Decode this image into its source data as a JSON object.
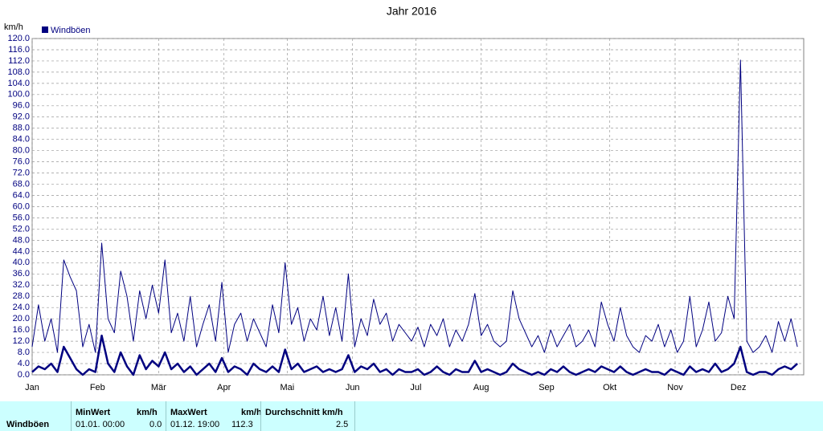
{
  "chart_data": {
    "type": "line",
    "title": "Jahr 2016",
    "y_label": "km/h",
    "color": "#000080",
    "grid": true,
    "legend": "top-left",
    "x": [
      0,
      3,
      6,
      9,
      12,
      15,
      18,
      21,
      24,
      27,
      30,
      33,
      36,
      39,
      42,
      45,
      48,
      51,
      54,
      57,
      60,
      63,
      66,
      69,
      72,
      75,
      78,
      81,
      84,
      87,
      90,
      93,
      96,
      99,
      102,
      105,
      108,
      111,
      114,
      117,
      120,
      123,
      126,
      129,
      132,
      135,
      138,
      141,
      144,
      147,
      150,
      153,
      156,
      159,
      162,
      165,
      168,
      171,
      174,
      177,
      180,
      183,
      186,
      189,
      192,
      195,
      198,
      201,
      204,
      207,
      210,
      213,
      216,
      219,
      222,
      225,
      228,
      231,
      234,
      237,
      240,
      243,
      246,
      249,
      252,
      255,
      258,
      261,
      264,
      267,
      270,
      273,
      276,
      279,
      282,
      285,
      288,
      291,
      294,
      297,
      300,
      303,
      306,
      309,
      312,
      315,
      318,
      321,
      324,
      327,
      330,
      333,
      336,
      339,
      342,
      345,
      348,
      351,
      354,
      357,
      360,
      363
    ],
    "series": [
      {
        "name": "Windböen",
        "color": "#000080",
        "width": 1,
        "values": [
          10,
          25,
          12,
          20,
          8,
          41,
          35,
          30,
          10,
          18,
          8,
          47,
          20,
          15,
          37,
          28,
          12,
          30,
          20,
          32,
          22,
          41,
          15,
          22,
          12,
          28,
          10,
          18,
          25,
          12,
          33,
          8,
          18,
          22,
          12,
          20,
          15,
          10,
          25,
          15,
          40,
          18,
          24,
          12,
          20,
          16,
          28,
          14,
          24,
          12,
          36,
          10,
          20,
          14,
          27,
          18,
          22,
          12,
          18,
          15,
          12,
          17,
          10,
          18,
          14,
          20,
          10,
          16,
          12,
          18,
          29,
          14,
          18,
          12,
          10,
          12,
          30,
          20,
          15,
          10,
          14,
          8,
          16,
          10,
          14,
          18,
          10,
          12,
          16,
          10,
          26,
          18,
          12,
          24,
          14,
          10,
          8,
          14,
          12,
          18,
          10,
          16,
          8,
          12,
          28,
          10,
          16,
          26,
          12,
          15,
          28,
          20,
          112.3,
          12,
          8,
          10,
          14,
          8,
          19,
          12,
          20,
          10
        ]
      },
      {
        "color": "#000080",
        "width": 2.5,
        "values": [
          1,
          3,
          2,
          4,
          1,
          10,
          6,
          2,
          0,
          2,
          1,
          14,
          4,
          1,
          8,
          3,
          0,
          7,
          2,
          5,
          3,
          8,
          2,
          4,
          1,
          3,
          0,
          2,
          4,
          1,
          6,
          1,
          3,
          2,
          0,
          4,
          2,
          1,
          3,
          1,
          9,
          2,
          4,
          1,
          2,
          3,
          1,
          2,
          1,
          2,
          7,
          1,
          3,
          2,
          4,
          1,
          2,
          0,
          2,
          1,
          1,
          2,
          0,
          1,
          3,
          1,
          0,
          2,
          1,
          1,
          5,
          1,
          2,
          1,
          0,
          1,
          4,
          2,
          1,
          0,
          1,
          0,
          2,
          1,
          3,
          1,
          0,
          1,
          2,
          1,
          3,
          2,
          1,
          3,
          1,
          0,
          1,
          2,
          1,
          1,
          0,
          2,
          1,
          0,
          3,
          1,
          2,
          1,
          4,
          1,
          2,
          4,
          10,
          1,
          0,
          1,
          1,
          0,
          2,
          3,
          2,
          4
        ]
      }
    ],
    "xlim": [
      0,
      366
    ],
    "xticks": [
      {
        "value": 0,
        "label": "Jan"
      },
      {
        "value": 31,
        "label": "Feb"
      },
      {
        "value": 60,
        "label": "Mär"
      },
      {
        "value": 91,
        "label": "Apr"
      },
      {
        "value": 121,
        "label": "Mai"
      },
      {
        "value": 152,
        "label": "Jun"
      },
      {
        "value": 182,
        "label": "Jul"
      },
      {
        "value": 213,
        "label": "Aug"
      },
      {
        "value": 244,
        "label": "Sep"
      },
      {
        "value": 274,
        "label": "Okt"
      },
      {
        "value": 305,
        "label": "Nov"
      },
      {
        "value": 335,
        "label": "Dez"
      }
    ],
    "ylim": [
      0,
      120
    ],
    "yticks": [
      {
        "value": 0,
        "label": "0.0"
      },
      {
        "value": 4,
        "label": "4.0"
      },
      {
        "value": 8,
        "label": "8.0"
      },
      {
        "value": 12,
        "label": "12.0"
      },
      {
        "value": 16,
        "label": "16.0"
      },
      {
        "value": 20,
        "label": "20.0"
      },
      {
        "value": 24,
        "label": "24.0"
      },
      {
        "value": 28,
        "label": "28.0"
      },
      {
        "value": 32,
        "label": "32.0"
      },
      {
        "value": 36,
        "label": "36.0"
      },
      {
        "value": 40,
        "label": "40.0"
      },
      {
        "value": 44,
        "label": "44.0"
      },
      {
        "value": 48,
        "label": "48.0"
      },
      {
        "value": 52,
        "label": "52.0"
      },
      {
        "value": 56,
        "label": "56.0"
      },
      {
        "value": 60,
        "label": "60.0"
      },
      {
        "value": 64,
        "label": "64.0"
      },
      {
        "value": 68,
        "label": "68.0"
      },
      {
        "value": 72,
        "label": "72.0"
      },
      {
        "value": 76,
        "label": "76.0"
      },
      {
        "value": 80,
        "label": "80.0"
      },
      {
        "value": 84,
        "label": "84.0"
      },
      {
        "value": 88,
        "label": "88.0"
      },
      {
        "value": 92,
        "label": "92.0"
      },
      {
        "value": 96,
        "label": "96.0"
      },
      {
        "value": 100,
        "label": "100.0"
      },
      {
        "value": 104,
        "label": "104.0"
      },
      {
        "value": 108,
        "label": "108.0"
      },
      {
        "value": 112,
        "label": "112.0"
      },
      {
        "value": 116,
        "label": "116.0"
      },
      {
        "value": 120,
        "label": "120.0"
      }
    ]
  },
  "table": {
    "row_label": "Windböen",
    "columns": [
      [
        "MinWert",
        "km/h",
        "01.01.  00:00",
        "0.0"
      ],
      [
        "MaxWert",
        "km/h",
        "01.12.  19:00",
        "112.3"
      ],
      [
        "Durchschnitt km/h",
        "2.5"
      ]
    ]
  }
}
